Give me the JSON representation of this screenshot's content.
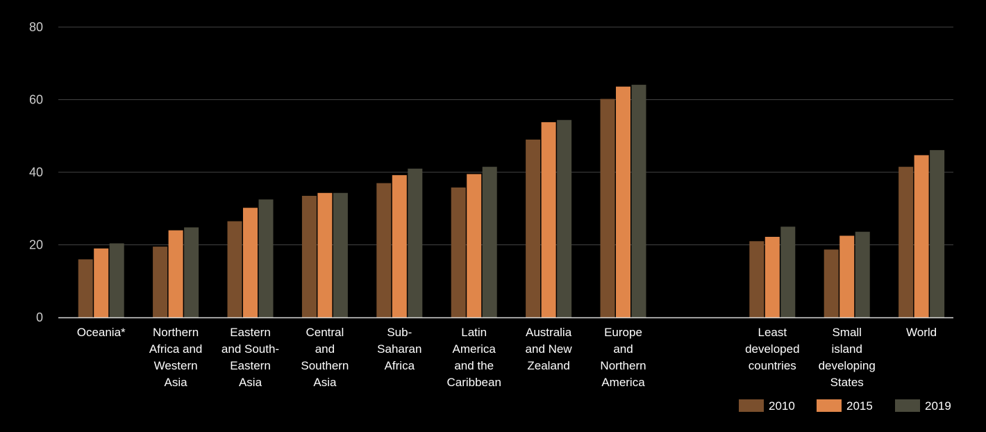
{
  "chart_data": {
    "type": "bar",
    "categories": [
      [
        "Oceania*"
      ],
      [
        "Northern",
        "Africa and",
        "Western",
        "Asia"
      ],
      [
        "Eastern",
        "and South-",
        "Eastern",
        "Asia"
      ],
      [
        "Central",
        "and",
        "Southern",
        "Asia"
      ],
      [
        "Sub-",
        "Saharan",
        "Africa"
      ],
      [
        "Latin",
        "America",
        "and the",
        "Caribbean"
      ],
      [
        "Australia",
        "and New",
        "Zealand"
      ],
      [
        "Europe",
        "and",
        "Northern",
        "America"
      ],
      [],
      [
        "Least",
        "developed",
        "countries"
      ],
      [
        "Small",
        "island",
        "developing",
        "States"
      ],
      [
        "World"
      ]
    ],
    "series": [
      {
        "name": "2010",
        "color": "#7a4f2d",
        "values": [
          16,
          19.5,
          26.5,
          33.5,
          37,
          35.8,
          49,
          60.2,
          null,
          21,
          18.7,
          41.5
        ]
      },
      {
        "name": "2015",
        "color": "#e0864a",
        "values": [
          19,
          24,
          30.2,
          34.3,
          39.2,
          39.5,
          53.8,
          63.6,
          null,
          22.2,
          22.5,
          44.7
        ]
      },
      {
        "name": "2019",
        "color": "#4a4a3c",
        "values": [
          20.4,
          24.8,
          32.5,
          34.3,
          41,
          41.5,
          54.4,
          64.1,
          null,
          25,
          23.6,
          46.1
        ]
      }
    ],
    "yticks": [
      0,
      20,
      40,
      60,
      80
    ],
    "ylim": [
      0,
      80
    ],
    "title": "",
    "xlabel": "",
    "ylabel": "",
    "grid": true,
    "legend_position": "bottom-right",
    "colors": {
      "background": "#000000",
      "grid": "#444444",
      "axis": "#cccccc",
      "text": "#ffffff"
    }
  }
}
